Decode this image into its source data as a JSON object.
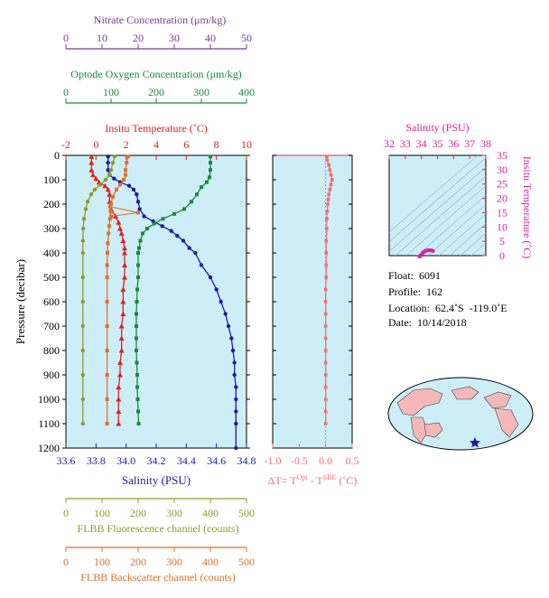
{
  "colors": {
    "nitrate": "#7a3b8f",
    "oxygen": "#1a8a3a",
    "temperature": "#e02020",
    "salinity": "#1a1aaa",
    "fluorescence": "#8f9a2a",
    "backscatter": "#e0702a",
    "delta": "#f07070",
    "ts": "#e020a0",
    "panel_bg": "#cdeef7"
  },
  "labels": {
    "float": "Float:  6091",
    "profile": "Profile:  162",
    "location": "Location:  62.4˚S  -119.0˚E",
    "date": "Date:  10/14/2018"
  },
  "chart_data": [
    {
      "type": "line",
      "name": "main-profile",
      "ylabel": "Pressure (decibar)",
      "ylim": [
        1200,
        0
      ],
      "yticks": [
        0,
        100,
        200,
        300,
        400,
        500,
        600,
        700,
        800,
        900,
        1000,
        1100,
        1200
      ],
      "axes": [
        {
          "key": "nitrate",
          "label": "Nitrate Concentration (μm/kg)",
          "lim": [
            0,
            50
          ],
          "ticks": [
            0,
            10,
            20,
            30,
            40,
            50
          ]
        },
        {
          "key": "oxygen",
          "label": "Optode Oxygen Concentration (μm/kg)",
          "lim": [
            0,
            400
          ],
          "ticks": [
            0,
            100,
            200,
            300,
            400
          ]
        },
        {
          "key": "temperature",
          "label": "Insitu Temperature (˚C)",
          "lim": [
            -2,
            10
          ],
          "ticks": [
            -2,
            0,
            2,
            4,
            6,
            8,
            10
          ]
        },
        {
          "key": "salinity",
          "label": "Salinity (PSU)",
          "lim": [
            33.6,
            34.8
          ],
          "ticks": [
            "33.6",
            "33.8",
            "34.0",
            "34.2",
            "34.4",
            "34.6",
            "34.8"
          ]
        },
        {
          "key": "fluorescence",
          "label": "FLBB Fluorescence channel (counts)",
          "lim": [
            0,
            500
          ],
          "ticks": [
            0,
            100,
            200,
            300,
            400,
            500
          ]
        },
        {
          "key": "backscatter",
          "label": "FLBB Backscatter channel (counts)",
          "lim": [
            0,
            500
          ],
          "ticks": [
            0,
            100,
            200,
            300,
            400,
            500
          ]
        }
      ],
      "series": [
        {
          "key": "temperature",
          "marker": "triangle",
          "points": [
            [
              -0.3,
              5
            ],
            [
              -0.3,
              30
            ],
            [
              -0.3,
              60
            ],
            [
              -0.2,
              80
            ],
            [
              0,
              95
            ],
            [
              0.2,
              110
            ],
            [
              0.6,
              125
            ],
            [
              0.8,
              140
            ],
            [
              0.9,
              160
            ],
            [
              0.9,
              190
            ],
            [
              1.0,
              220
            ],
            [
              1.3,
              250
            ],
            [
              1.5,
              275
            ],
            [
              1.6,
              300
            ],
            [
              1.7,
              320
            ],
            [
              1.8,
              350
            ],
            [
              1.9,
              380
            ],
            [
              1.9,
              400
            ],
            [
              1.9,
              450
            ],
            [
              1.9,
              500
            ],
            [
              1.8,
              550
            ],
            [
              1.8,
              600
            ],
            [
              1.8,
              650
            ],
            [
              1.7,
              700
            ],
            [
              1.7,
              750
            ],
            [
              1.7,
              800
            ],
            [
              1.6,
              850
            ],
            [
              1.6,
              900
            ],
            [
              1.5,
              950
            ],
            [
              1.5,
              1000
            ],
            [
              1.5,
              1050
            ],
            [
              1.5,
              1100
            ]
          ]
        },
        {
          "key": "salinity",
          "marker": "circle",
          "points": [
            [
              33.88,
              5
            ],
            [
              33.88,
              30
            ],
            [
              33.88,
              60
            ],
            [
              33.89,
              80
            ],
            [
              33.92,
              95
            ],
            [
              33.96,
              110
            ],
            [
              34.02,
              125
            ],
            [
              34.05,
              140
            ],
            [
              34.07,
              160
            ],
            [
              34.08,
              190
            ],
            [
              34.09,
              220
            ],
            [
              34.12,
              250
            ],
            [
              34.18,
              270
            ],
            [
              34.24,
              290
            ],
            [
              34.3,
              310
            ],
            [
              34.34,
              330
            ],
            [
              34.38,
              350
            ],
            [
              34.42,
              380
            ],
            [
              34.46,
              400
            ],
            [
              34.5,
              450
            ],
            [
              34.56,
              500
            ],
            [
              34.6,
              550
            ],
            [
              34.63,
              600
            ],
            [
              34.66,
              650
            ],
            [
              34.68,
              700
            ],
            [
              34.7,
              750
            ],
            [
              34.71,
              800
            ],
            [
              34.72,
              850
            ],
            [
              34.72,
              900
            ],
            [
              34.73,
              950
            ],
            [
              34.73,
              1000
            ],
            [
              34.73,
              1050
            ],
            [
              34.73,
              1100
            ],
            [
              34.73,
              1200
            ]
          ]
        },
        {
          "key": "oxygen",
          "marker": "square",
          "points": [
            [
              320,
              5
            ],
            [
              320,
              30
            ],
            [
              320,
              60
            ],
            [
              318,
              90
            ],
            [
              312,
              110
            ],
            [
              300,
              130
            ],
            [
              290,
              160
            ],
            [
              278,
              190
            ],
            [
              262,
              220
            ],
            [
              240,
              240
            ],
            [
              215,
              260
            ],
            [
              195,
              280
            ],
            [
              180,
              300
            ],
            [
              170,
              320
            ],
            [
              165,
              350
            ],
            [
              162,
              380
            ],
            [
              160,
              400
            ],
            [
              160,
              450
            ],
            [
              160,
              500
            ],
            [
              158,
              550
            ],
            [
              157,
              600
            ],
            [
              156,
              650
            ],
            [
              156,
              700
            ],
            [
              156,
              750
            ],
            [
              156,
              800
            ],
            [
              157,
              850
            ],
            [
              158,
              900
            ],
            [
              158,
              950
            ],
            [
              159,
              1000
            ],
            [
              160,
              1050
            ],
            [
              161,
              1100
            ]
          ]
        },
        {
          "key": "fluorescence",
          "marker": "circle",
          "points": [
            [
              135,
              5
            ],
            [
              130,
              30
            ],
            [
              125,
              60
            ],
            [
              120,
              80
            ],
            [
              110,
              100
            ],
            [
              95,
              120
            ],
            [
              80,
              140
            ],
            [
              70,
              160
            ],
            [
              60,
              190
            ],
            [
              55,
              220
            ],
            [
              50,
              260
            ],
            [
              48,
              300
            ],
            [
              47,
              350
            ],
            [
              47,
              400
            ],
            [
              47,
              500
            ],
            [
              47,
              600
            ],
            [
              47,
              700
            ],
            [
              47,
              800
            ],
            [
              47,
              900
            ],
            [
              47,
              1000
            ],
            [
              47,
              1100
            ]
          ]
        },
        {
          "key": "backscatter",
          "marker": "square",
          "points": [
            [
              172,
              5
            ],
            [
              168,
              30
            ],
            [
              165,
              60
            ],
            [
              165,
              80
            ],
            [
              160,
              100
            ],
            [
              150,
              120
            ],
            [
              140,
              140
            ],
            [
              130,
              170
            ],
            [
              125,
              200
            ],
            [
              124,
              230
            ],
            [
              122,
              260
            ],
            [
              120,
              290
            ],
            [
              118,
              320
            ],
            [
              116,
              360
            ],
            [
              115,
              400
            ],
            [
              114,
              450
            ],
            [
              114,
              500
            ],
            [
              114,
              600
            ],
            [
              114,
              700
            ],
            [
              114,
              800
            ],
            [
              114,
              900
            ],
            [
              114,
              1000
            ],
            [
              114,
              1100
            ]
          ]
        }
      ],
      "spike": {
        "key": "backscatter",
        "points": [
          [
            122,
            210
          ],
          [
            200,
            235
          ],
          [
            125,
            250
          ]
        ]
      }
    },
    {
      "type": "line",
      "name": "delta-t-profile",
      "xlabel": "ΔT= T",
      "xlabel_sup1": "Opt",
      "xlabel_mid": " - T",
      "xlabel_sup2": "SBE",
      "xlabel_end": " (˚C)",
      "xlim": [
        -1.0,
        0.5
      ],
      "xticks": [
        "-1.0",
        "-0.5",
        "0.0",
        "0.5"
      ],
      "ylim": [
        1200,
        0
      ],
      "points": [
        [
          0.02,
          5
        ],
        [
          0.03,
          20
        ],
        [
          0.06,
          40
        ],
        [
          0.08,
          60
        ],
        [
          0.1,
          80
        ],
        [
          0.12,
          100
        ],
        [
          0.1,
          120
        ],
        [
          0.08,
          140
        ],
        [
          0.06,
          160
        ],
        [
          0.05,
          180
        ],
        [
          0.04,
          200
        ],
        [
          0.03,
          230
        ],
        [
          0.02,
          260
        ],
        [
          0.02,
          300
        ],
        [
          0.01,
          350
        ],
        [
          0.01,
          400
        ],
        [
          0.01,
          450
        ],
        [
          0.01,
          500
        ],
        [
          0.0,
          550
        ],
        [
          0.0,
          600
        ],
        [
          0.0,
          650
        ],
        [
          0.0,
          700
        ],
        [
          0.0,
          750
        ],
        [
          0.0,
          800
        ],
        [
          0.0,
          850
        ],
        [
          0.0,
          900
        ],
        [
          0.0,
          950
        ],
        [
          0.0,
          1000
        ],
        [
          0.0,
          1050
        ],
        [
          0.0,
          1100
        ]
      ]
    },
    {
      "type": "scatter",
      "name": "ts-diagram",
      "title": "Salinity (PSU)",
      "xlim": [
        32,
        38
      ],
      "xticks": [
        32,
        33,
        34,
        35,
        36,
        37,
        38
      ],
      "ylabel": "Insitu Temperature (˚C)",
      "ylim": [
        0,
        35
      ],
      "yticks": [
        0,
        5,
        10,
        15,
        20,
        25,
        30,
        35
      ],
      "points": [
        [
          33.88,
          -0.3
        ],
        [
          33.9,
          -0.2
        ],
        [
          33.95,
          0
        ],
        [
          34.0,
          0.2
        ],
        [
          34.05,
          0.6
        ],
        [
          34.08,
          0.9
        ],
        [
          34.1,
          1.0
        ],
        [
          34.15,
          1.3
        ],
        [
          34.2,
          1.5
        ],
        [
          34.25,
          1.6
        ],
        [
          34.3,
          1.7
        ],
        [
          34.35,
          1.8
        ],
        [
          34.4,
          1.9
        ],
        [
          34.45,
          1.9
        ],
        [
          34.5,
          1.9
        ],
        [
          34.55,
          1.9
        ],
        [
          34.6,
          1.8
        ],
        [
          34.65,
          1.8
        ],
        [
          34.7,
          1.7
        ],
        [
          34.73,
          1.6
        ]
      ]
    }
  ]
}
